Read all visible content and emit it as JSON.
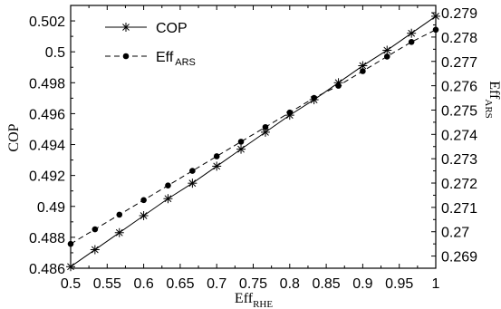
{
  "chart_data": {
    "type": "line",
    "xlabel": {
      "main": "Eff",
      "sub": "RHE"
    },
    "ylabel_left": "COP",
    "ylabel_right": {
      "main": "Eff",
      "sub": "ARS"
    },
    "xlim": [
      0.5,
      1.0
    ],
    "ylim_left": [
      0.486,
      0.503
    ],
    "ylim_right": [
      0.2685,
      0.2793
    ],
    "x_ticks": [
      0.5,
      0.55,
      0.6,
      0.65,
      0.7,
      0.75,
      0.8,
      0.85,
      0.9,
      0.95,
      1
    ],
    "x_tick_labels": [
      "0.5",
      "0.55",
      "0.6",
      "0.65",
      "0.7",
      "0.75",
      "0.8",
      "0.85",
      "0.9",
      "0.95",
      "1"
    ],
    "y_left_ticks": [
      0.486,
      0.488,
      0.49,
      0.492,
      0.494,
      0.496,
      0.498,
      0.5,
      0.502
    ],
    "y_left_tick_labels": [
      "0.486",
      "0.488",
      "0.49",
      "0.492",
      "0.494",
      "0.496",
      "0.498",
      "0.5",
      "0.502"
    ],
    "y_right_ticks": [
      0.269,
      0.27,
      0.271,
      0.272,
      0.273,
      0.274,
      0.275,
      0.276,
      0.277,
      0.278,
      0.279
    ],
    "y_right_tick_labels": [
      "0.269",
      "0.27",
      "0.271",
      "0.272",
      "0.273",
      "0.274",
      "0.275",
      "0.276",
      "0.277",
      "0.278",
      "0.279"
    ],
    "legend_position": "top-left",
    "series": [
      {
        "name": "COP",
        "axis": "left",
        "line_style": "solid",
        "marker": "asterisk",
        "color": "#000000",
        "x": [
          0.5,
          0.5333,
          0.5667,
          0.6,
          0.6333,
          0.6667,
          0.7,
          0.7333,
          0.7667,
          0.8,
          0.8333,
          0.8667,
          0.9,
          0.9333,
          0.9667,
          1.0
        ],
        "y": [
          0.4861,
          0.4872,
          0.4883,
          0.4894,
          0.4905,
          0.4915,
          0.4926,
          0.4937,
          0.4948,
          0.4959,
          0.4969,
          0.498,
          0.4991,
          0.5001,
          0.5012,
          0.5023
        ]
      },
      {
        "name": "Eff",
        "name_sub": "ARS",
        "axis": "right",
        "line_style": "dashed",
        "marker": "filled-circle",
        "color": "#000000",
        "x": [
          0.5,
          0.5333,
          0.5667,
          0.6,
          0.6333,
          0.6667,
          0.7,
          0.7333,
          0.7667,
          0.8,
          0.8333,
          0.8667,
          0.9,
          0.9333,
          0.9667,
          1.0
        ],
        "y": [
          0.2695,
          0.2701,
          0.2707,
          0.2713,
          0.2719,
          0.2725,
          0.2731,
          0.2737,
          0.2743,
          0.2749,
          0.2755,
          0.276,
          0.2766,
          0.2772,
          0.2778,
          0.2783
        ]
      }
    ]
  }
}
